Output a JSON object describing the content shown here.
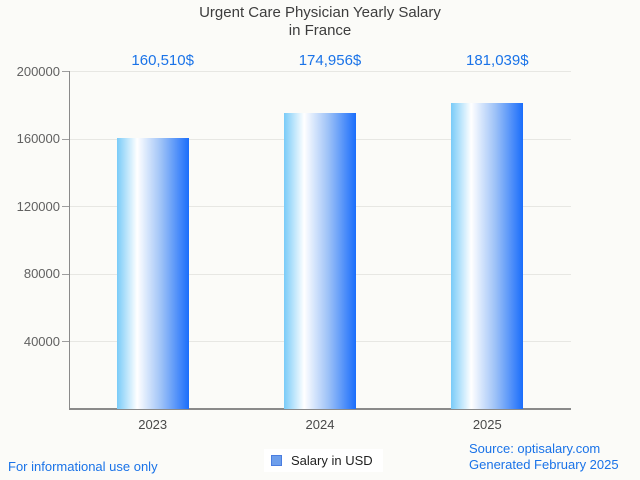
{
  "title": {
    "line1": "Urgent Care Physician Yearly Salary",
    "line2": "in France"
  },
  "chart_data": {
    "type": "bar",
    "categories": [
      "2023",
      "2024",
      "2025"
    ],
    "series": [
      {
        "name": "Salary in USD",
        "values": [
          160510,
          174956,
          181039
        ]
      }
    ],
    "value_labels": [
      "160,510$",
      "174,956$",
      "181,039$"
    ],
    "title": "Urgent Care Physician Yearly Salary in France",
    "xlabel": "",
    "ylabel": "",
    "ylim": [
      0,
      200000
    ],
    "yticks": [
      40000,
      80000,
      120000,
      160000,
      200000
    ],
    "grid": true,
    "legend_position": "bottom"
  },
  "legend": {
    "label": "Salary in USD",
    "swatch_color": "#6d9eeb"
  },
  "footer": {
    "left": "For informational use only",
    "source": "Source: optisalary.com",
    "generated": "Generated February 2025"
  },
  "colors": {
    "accent_blue": "#1a73e8",
    "bar_gradient_start": "#79cbf8",
    "bar_gradient_mid": "#ffffff",
    "bar_gradient_end": "#1a6dfb",
    "title_color": "#3d3d3d",
    "tick_label_color": "#616161",
    "axis_color": "#8a8a8a",
    "gridline_color": "#e7e7e3",
    "background": "#fbfbf8"
  }
}
